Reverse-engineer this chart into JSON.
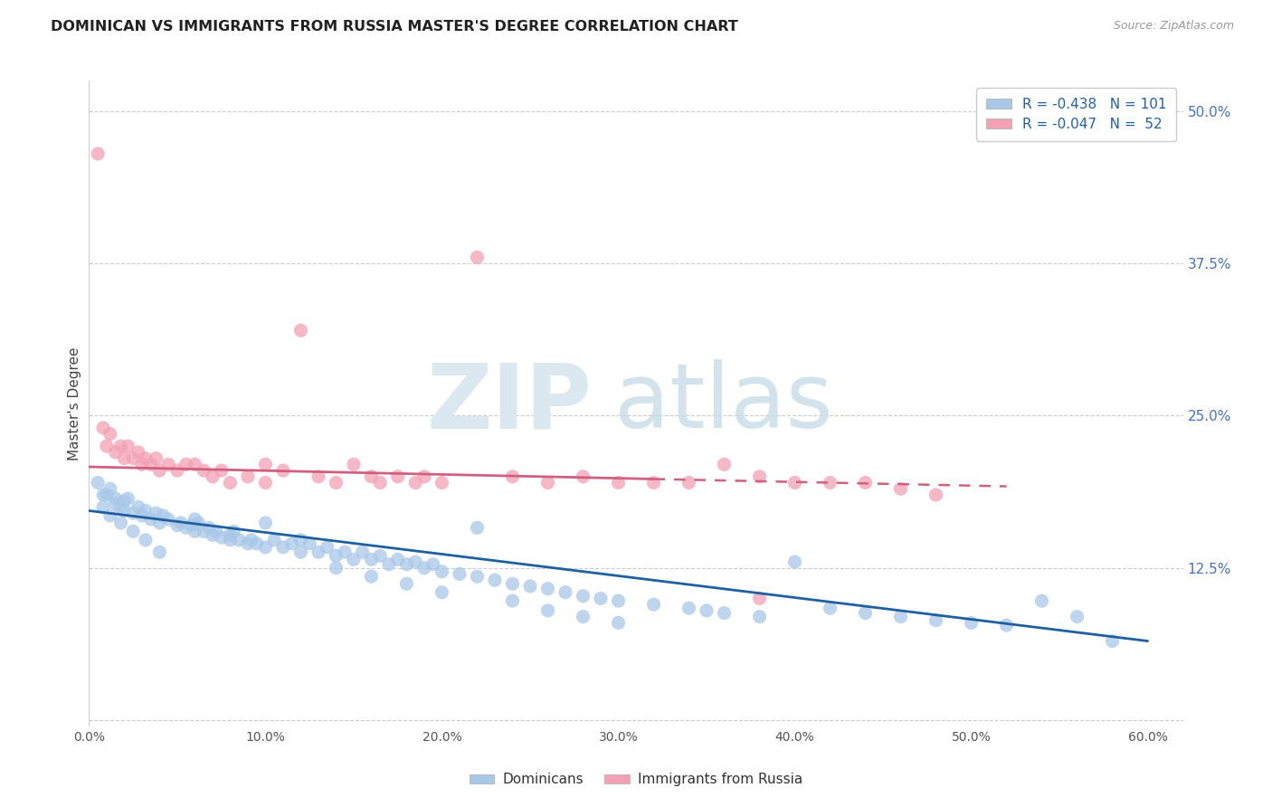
{
  "title": "DOMINICAN VS IMMIGRANTS FROM RUSSIA MASTER'S DEGREE CORRELATION CHART",
  "source": "Source: ZipAtlas.com",
  "ylabel": "Master's Degree",
  "series1_color": "#a8c8e8",
  "series2_color": "#f4a0b5",
  "trendline1_color": "#2060a0",
  "trendline2_color": "#d06080",
  "xrange": [
    0.0,
    0.62
  ],
  "yrange": [
    -0.005,
    0.525
  ],
  "ytick_positions": [
    0.0,
    0.125,
    0.25,
    0.375,
    0.5
  ],
  "ytick_labels": [
    "",
    "12.5%",
    "25.0%",
    "37.5%",
    "50.0%"
  ],
  "xtick_positions": [
    0.0,
    0.1,
    0.2,
    0.3,
    0.4,
    0.5,
    0.6
  ],
  "xtick_labels": [
    "0.0%",
    "10.0%",
    "20.0%",
    "30.0%",
    "40.0%",
    "50.0%",
    "60.0%"
  ],
  "trendline1_x": [
    0.0,
    0.6
  ],
  "trendline1_y": [
    0.172,
    0.065
  ],
  "trendline2_x": [
    0.0,
    0.5
  ],
  "trendline2_y": [
    0.208,
    0.192
  ],
  "dominicans_x": [
    0.005,
    0.008,
    0.01,
    0.012,
    0.015,
    0.015,
    0.018,
    0.02,
    0.02,
    0.022,
    0.025,
    0.028,
    0.03,
    0.032,
    0.035,
    0.038,
    0.04,
    0.042,
    0.045,
    0.05,
    0.052,
    0.055,
    0.058,
    0.06,
    0.062,
    0.065,
    0.068,
    0.07,
    0.072,
    0.075,
    0.08,
    0.082,
    0.085,
    0.09,
    0.092,
    0.095,
    0.1,
    0.105,
    0.11,
    0.115,
    0.12,
    0.125,
    0.13,
    0.135,
    0.14,
    0.145,
    0.15,
    0.155,
    0.16,
    0.165,
    0.17,
    0.175,
    0.18,
    0.185,
    0.19,
    0.195,
    0.2,
    0.21,
    0.22,
    0.23,
    0.24,
    0.25,
    0.26,
    0.27,
    0.28,
    0.29,
    0.3,
    0.32,
    0.34,
    0.35,
    0.36,
    0.38,
    0.4,
    0.42,
    0.44,
    0.46,
    0.48,
    0.5,
    0.52,
    0.54,
    0.56,
    0.58,
    0.008,
    0.012,
    0.018,
    0.025,
    0.032,
    0.04,
    0.06,
    0.08,
    0.1,
    0.12,
    0.14,
    0.16,
    0.18,
    0.2,
    0.22,
    0.24,
    0.26,
    0.28,
    0.3
  ],
  "dominicans_y": [
    0.195,
    0.185,
    0.185,
    0.19,
    0.178,
    0.182,
    0.175,
    0.18,
    0.172,
    0.182,
    0.17,
    0.175,
    0.168,
    0.172,
    0.165,
    0.17,
    0.162,
    0.168,
    0.165,
    0.16,
    0.162,
    0.158,
    0.16,
    0.155,
    0.162,
    0.155,
    0.158,
    0.152,
    0.155,
    0.15,
    0.148,
    0.155,
    0.148,
    0.145,
    0.148,
    0.145,
    0.142,
    0.148,
    0.142,
    0.145,
    0.138,
    0.145,
    0.138,
    0.142,
    0.135,
    0.138,
    0.132,
    0.138,
    0.132,
    0.135,
    0.128,
    0.132,
    0.128,
    0.13,
    0.125,
    0.128,
    0.122,
    0.12,
    0.118,
    0.115,
    0.112,
    0.11,
    0.108,
    0.105,
    0.102,
    0.1,
    0.098,
    0.095,
    0.092,
    0.09,
    0.088,
    0.085,
    0.13,
    0.092,
    0.088,
    0.085,
    0.082,
    0.08,
    0.078,
    0.098,
    0.085,
    0.065,
    0.175,
    0.168,
    0.162,
    0.155,
    0.148,
    0.138,
    0.165,
    0.152,
    0.162,
    0.148,
    0.125,
    0.118,
    0.112,
    0.105,
    0.158,
    0.098,
    0.09,
    0.085,
    0.08
  ],
  "russia_x": [
    0.005,
    0.008,
    0.01,
    0.012,
    0.015,
    0.018,
    0.02,
    0.022,
    0.025,
    0.028,
    0.03,
    0.032,
    0.035,
    0.038,
    0.04,
    0.045,
    0.05,
    0.055,
    0.06,
    0.065,
    0.07,
    0.075,
    0.08,
    0.09,
    0.1,
    0.11,
    0.12,
    0.13,
    0.14,
    0.15,
    0.16,
    0.165,
    0.175,
    0.185,
    0.19,
    0.2,
    0.22,
    0.24,
    0.26,
    0.28,
    0.3,
    0.32,
    0.34,
    0.36,
    0.38,
    0.4,
    0.42,
    0.44,
    0.46,
    0.48,
    0.38,
    0.1
  ],
  "russia_y": [
    0.465,
    0.24,
    0.225,
    0.235,
    0.22,
    0.225,
    0.215,
    0.225,
    0.215,
    0.22,
    0.21,
    0.215,
    0.21,
    0.215,
    0.205,
    0.21,
    0.205,
    0.21,
    0.21,
    0.205,
    0.2,
    0.205,
    0.195,
    0.2,
    0.195,
    0.205,
    0.32,
    0.2,
    0.195,
    0.21,
    0.2,
    0.195,
    0.2,
    0.195,
    0.2,
    0.195,
    0.38,
    0.2,
    0.195,
    0.2,
    0.195,
    0.195,
    0.195,
    0.21,
    0.2,
    0.195,
    0.195,
    0.195,
    0.19,
    0.185,
    0.1,
    0.21
  ],
  "legend1_text": "R = -0.438   N = 101",
  "legend2_text": "R = -0.047   N =  52"
}
